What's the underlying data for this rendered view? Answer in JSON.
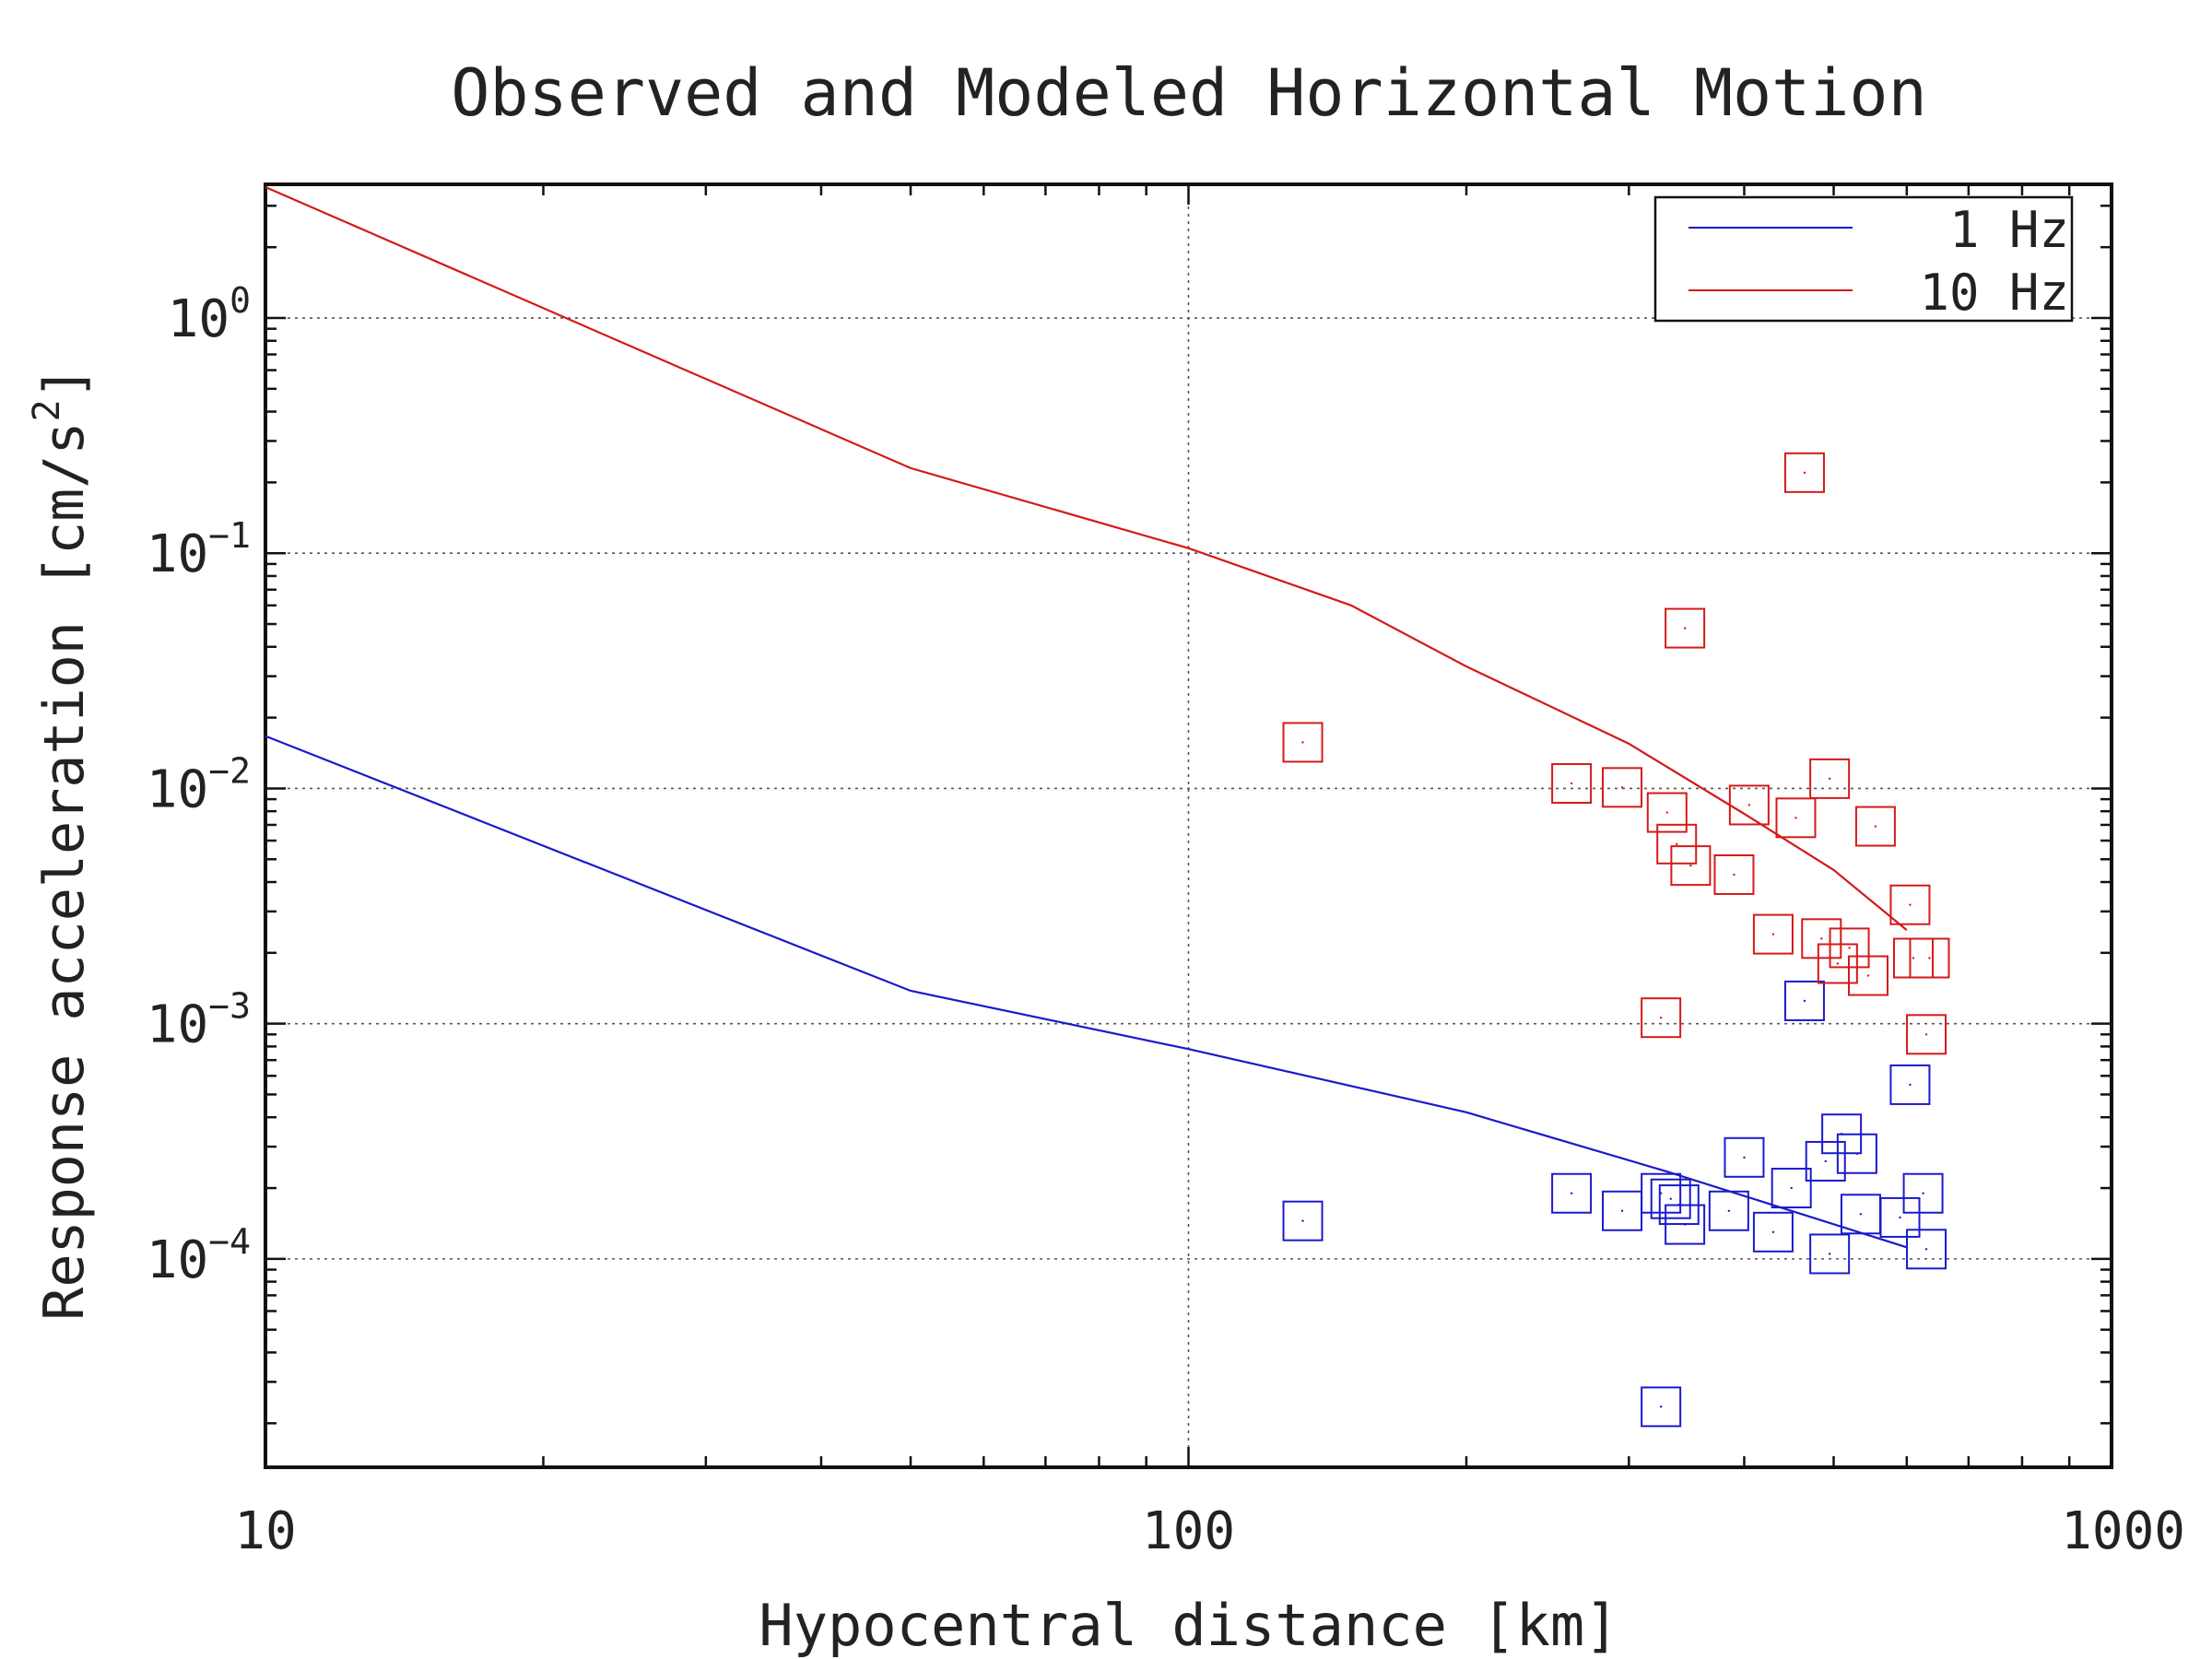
{
  "chart_data": {
    "type": "scatter",
    "title": "Observed and Modeled Horizontal Motion",
    "xlabel": "Hypocentral distance [km]",
    "ylabel_text": "Response acceleration [cm/s",
    "ylabel_sup": "2",
    "ylabel_end": "]",
    "x_scale": "log",
    "y_scale": "log",
    "xlim": [
      10,
      1000
    ],
    "ylim": [
      1.3e-05,
      3.7
    ],
    "xticks": [
      {
        "value": 10,
        "label": "10"
      },
      {
        "value": 100,
        "label": "100"
      },
      {
        "value": 1000,
        "label": "1000"
      }
    ],
    "yticks": [
      {
        "value": 1,
        "base": "10",
        "exp": "0"
      },
      {
        "value": 0.1,
        "base": "10",
        "exp": "−1"
      },
      {
        "value": 0.01,
        "base": "10",
        "exp": "−2"
      },
      {
        "value": 0.001,
        "base": "10",
        "exp": "−3"
      },
      {
        "value": 0.0001,
        "base": "10",
        "exp": "−4"
      }
    ],
    "grid": "dotted",
    "legend_position": "top-right",
    "series": [
      {
        "name": "1 Hz",
        "color": "#1a1acc",
        "model": [
          [
            10,
            0.0167
          ],
          [
            50,
            0.00138
          ],
          [
            100,
            0.00078
          ],
          [
            200,
            0.00042
          ],
          [
            330,
            0.000235
          ],
          [
            450,
            0.00016
          ],
          [
            600,
            0.000112
          ]
        ],
        "observed": [
          [
            133,
            0.000145
          ],
          [
            260,
            0.00019
          ],
          [
            295,
            0.00016
          ],
          [
            325,
            0.00019
          ],
          [
            333,
            0.00018
          ],
          [
            340,
            0.00017
          ],
          [
            345,
            0.00014
          ],
          [
            385,
            0.00016
          ],
          [
            400,
            0.00027
          ],
          [
            430,
            0.00013
          ],
          [
            450,
            0.0002
          ],
          [
            465,
            0.00125
          ],
          [
            490,
            0.00026
          ],
          [
            495,
            0.000105
          ],
          [
            510,
            0.00034
          ],
          [
            530,
            0.00028
          ],
          [
            535,
            0.000155
          ],
          [
            590,
            0.00015
          ],
          [
            605,
            0.00055
          ],
          [
            625,
            0.00019
          ],
          [
            630,
            0.00011
          ],
          [
            325,
            2.35e-05
          ]
        ]
      },
      {
        "name": "10 Hz",
        "color": "#d41a1a",
        "model": [
          [
            10,
            3.6
          ],
          [
            50,
            0.23
          ],
          [
            100,
            0.105
          ],
          [
            150,
            0.06
          ],
          [
            200,
            0.033
          ],
          [
            300,
            0.0155
          ],
          [
            400,
            0.0078
          ],
          [
            500,
            0.0045
          ],
          [
            600,
            0.0025
          ]
        ],
        "observed": [
          [
            133,
            0.0157
          ],
          [
            260,
            0.0105
          ],
          [
            295,
            0.0101
          ],
          [
            330,
            0.0079
          ],
          [
            338,
            0.0058
          ],
          [
            345,
            0.048
          ],
          [
            350,
            0.0047
          ],
          [
            390,
            0.0043
          ],
          [
            405,
            0.0085
          ],
          [
            430,
            0.0024
          ],
          [
            455,
            0.0075
          ],
          [
            465,
            0.22
          ],
          [
            495,
            0.011
          ],
          [
            485,
            0.0023
          ],
          [
            505,
            0.0018
          ],
          [
            520,
            0.0021
          ],
          [
            545,
            0.0016
          ],
          [
            555,
            0.0069
          ],
          [
            605,
            0.0032
          ],
          [
            610,
            0.0019
          ],
          [
            630,
            0.0009
          ],
          [
            635,
            0.0019
          ],
          [
            325,
            0.00106
          ]
        ]
      }
    ]
  }
}
